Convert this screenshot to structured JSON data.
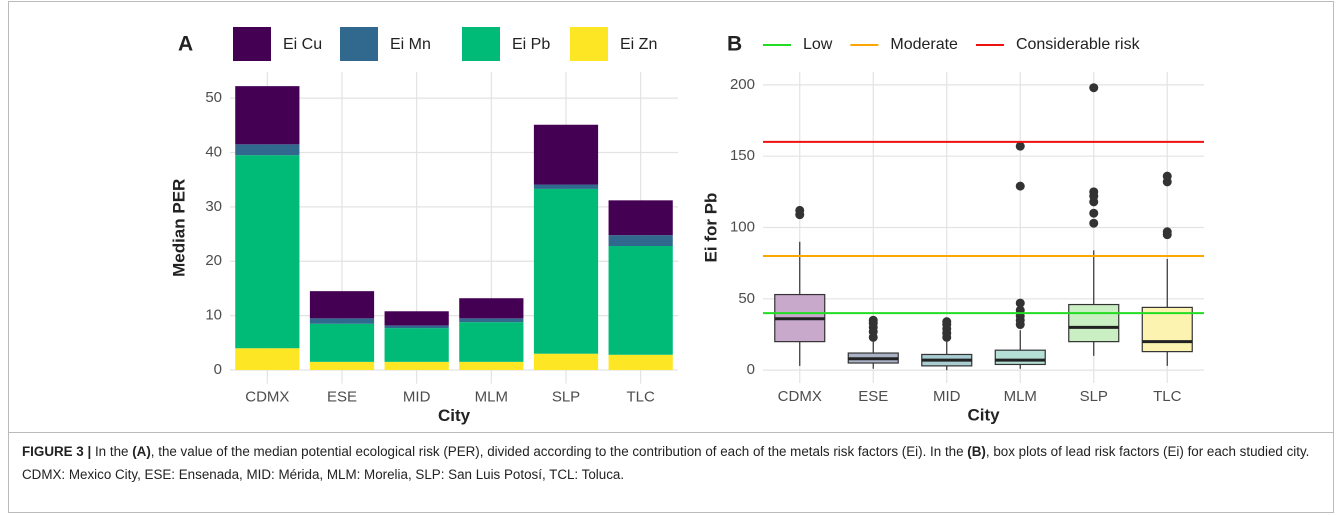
{
  "chart_data": [
    {
      "type": "bar",
      "stacked": true,
      "panel": "A",
      "xlabel": "City",
      "ylabel": "Median PER",
      "categories": [
        "CDMX",
        "ESE",
        "MID",
        "MLM",
        "SLP",
        "TLC"
      ],
      "series": [
        {
          "name": "Ei Cu",
          "color": "#440154",
          "values": [
            10.7,
            5,
            2.6,
            3.7,
            11,
            6.4
          ]
        },
        {
          "name": "Ei Mn",
          "color": "#31688e",
          "values": [
            2,
            1,
            0.5,
            0.7,
            0.8,
            2
          ]
        },
        {
          "name": "Ei Pb",
          "color": "#00ba77",
          "values": [
            35.5,
            7,
            6.2,
            7.3,
            30.3,
            20
          ]
        },
        {
          "name": "Ei Zn",
          "color": "#fde725",
          "values": [
            4,
            1.5,
            1.5,
            1.5,
            3,
            2.8
          ]
        }
      ],
      "ylim": [
        -2.5,
        54.8
      ],
      "yticks": [
        0,
        10,
        20,
        30,
        40,
        50
      ],
      "grid": true
    },
    {
      "type": "box",
      "panel": "B",
      "xlabel": "City",
      "ylabel": "Ei for Pb",
      "categories": [
        "CDMX",
        "ESE",
        "MID",
        "MLM",
        "SLP",
        "TLC"
      ],
      "colors": [
        "#c8a9cc",
        "#aab2c6",
        "#a9cdd1",
        "#b5e0d6",
        "#c9efc2",
        "#fdf3b0"
      ],
      "low": [
        3,
        1,
        0,
        1,
        10,
        3
      ],
      "q1": [
        20,
        5,
        3,
        4,
        20,
        13
      ],
      "median": [
        36,
        8,
        7,
        7,
        30,
        20
      ],
      "q3": [
        53,
        12,
        11,
        14,
        46,
        44
      ],
      "high": [
        90,
        20,
        20,
        28,
        84,
        78
      ],
      "outliers": [
        [
          109,
          112
        ],
        [
          23,
          27,
          30,
          33,
          35
        ],
        [
          23,
          26,
          29,
          32,
          34
        ],
        [
          32,
          35,
          38,
          42,
          47,
          129,
          157
        ],
        [
          103,
          110,
          118,
          122,
          125,
          198
        ],
        [
          95,
          97,
          132,
          136
        ]
      ],
      "hlines": [
        {
          "name": "Low",
          "value": 40,
          "color": "#22dd22"
        },
        {
          "name": "Moderate",
          "value": 80,
          "color": "#ffa500"
        },
        {
          "name": "Considerable risk",
          "value": 160,
          "color": "#ee1111"
        }
      ],
      "ylim": [
        -9,
        209
      ],
      "yticks": [
        0,
        50,
        100,
        150,
        200
      ],
      "grid": true
    }
  ],
  "caption": [
    {
      "text": "FIGURE 3 |",
      "bold": true
    },
    {
      "text": " In the ",
      "bold": false
    },
    {
      "text": "(A)",
      "bold": true
    },
    {
      "text": ", the value of the median potential ecological risk (PER), divided according to the contribution of each of the metals risk factors (Ei). In the ",
      "bold": false
    },
    {
      "text": "(B)",
      "bold": true
    },
    {
      "text": ", box plots of lead risk factors (Ei) for each studied city. CDMX: Mexico City, ESE: Ensenada, MID: Mérida, MLM: Morelia, SLP: San Luis Potosí, TCL: Toluca.",
      "bold": false
    }
  ]
}
